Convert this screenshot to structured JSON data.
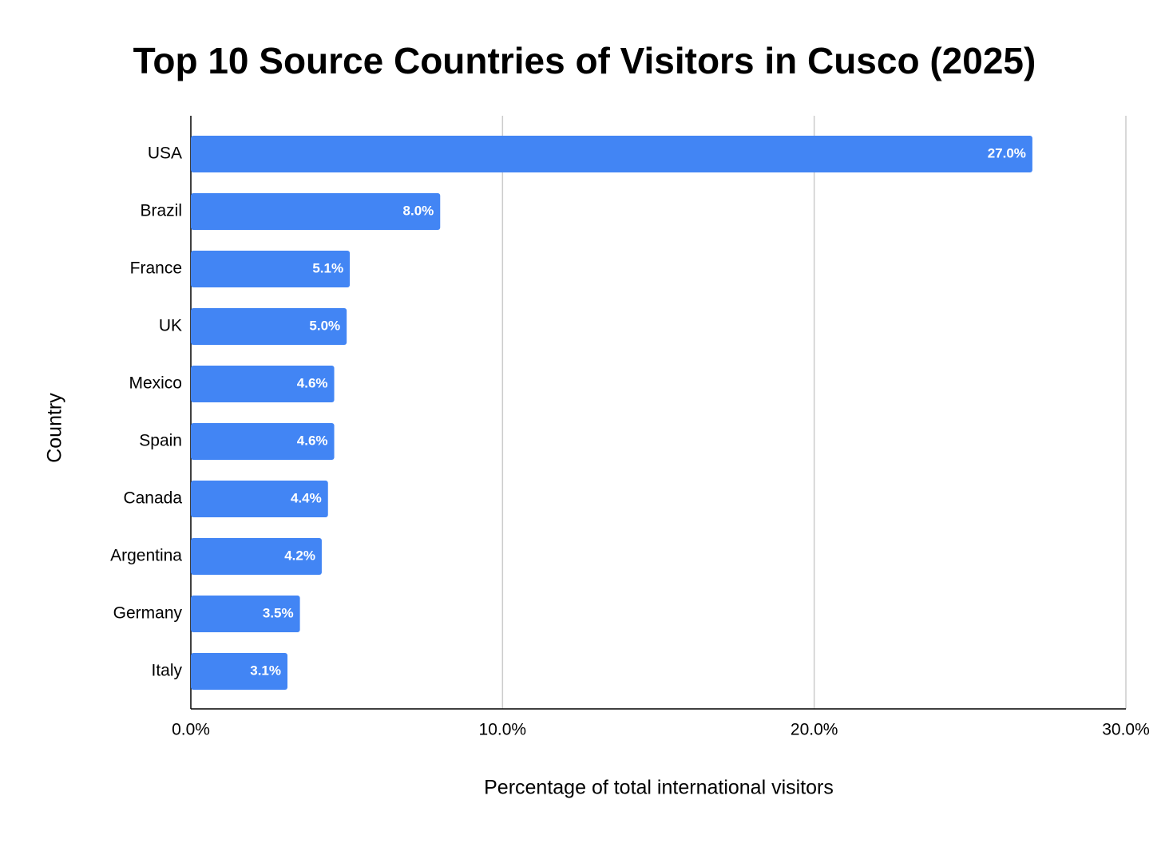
{
  "chart_data": {
    "type": "bar",
    "orientation": "horizontal",
    "title": "Top 10 Source Countries of Visitors in Cusco (2025)",
    "x_label": "Percentage of total international visitors",
    "y_label": "Country",
    "categories": [
      "USA",
      "Brazil",
      "France",
      "UK",
      "Mexico",
      "Spain",
      "Canada",
      "Argentina",
      "Germany",
      "Italy"
    ],
    "values": [
      27.0,
      8.0,
      5.1,
      5.0,
      4.6,
      4.6,
      4.4,
      4.2,
      3.5,
      3.1
    ],
    "value_labels": [
      "27.0%",
      "8.0%",
      "5.1%",
      "5.0%",
      "4.6%",
      "4.6%",
      "4.4%",
      "4.2%",
      "3.5%",
      "3.1%"
    ],
    "color": "#4285f4",
    "xlim": [
      0,
      30
    ],
    "xticks": [
      {
        "value": 0,
        "label": "0.0%"
      },
      {
        "value": 10,
        "label": "10.0%"
      },
      {
        "value": 20,
        "label": "20.0%"
      },
      {
        "value": 30,
        "label": "30.0%"
      }
    ],
    "grid": true
  }
}
